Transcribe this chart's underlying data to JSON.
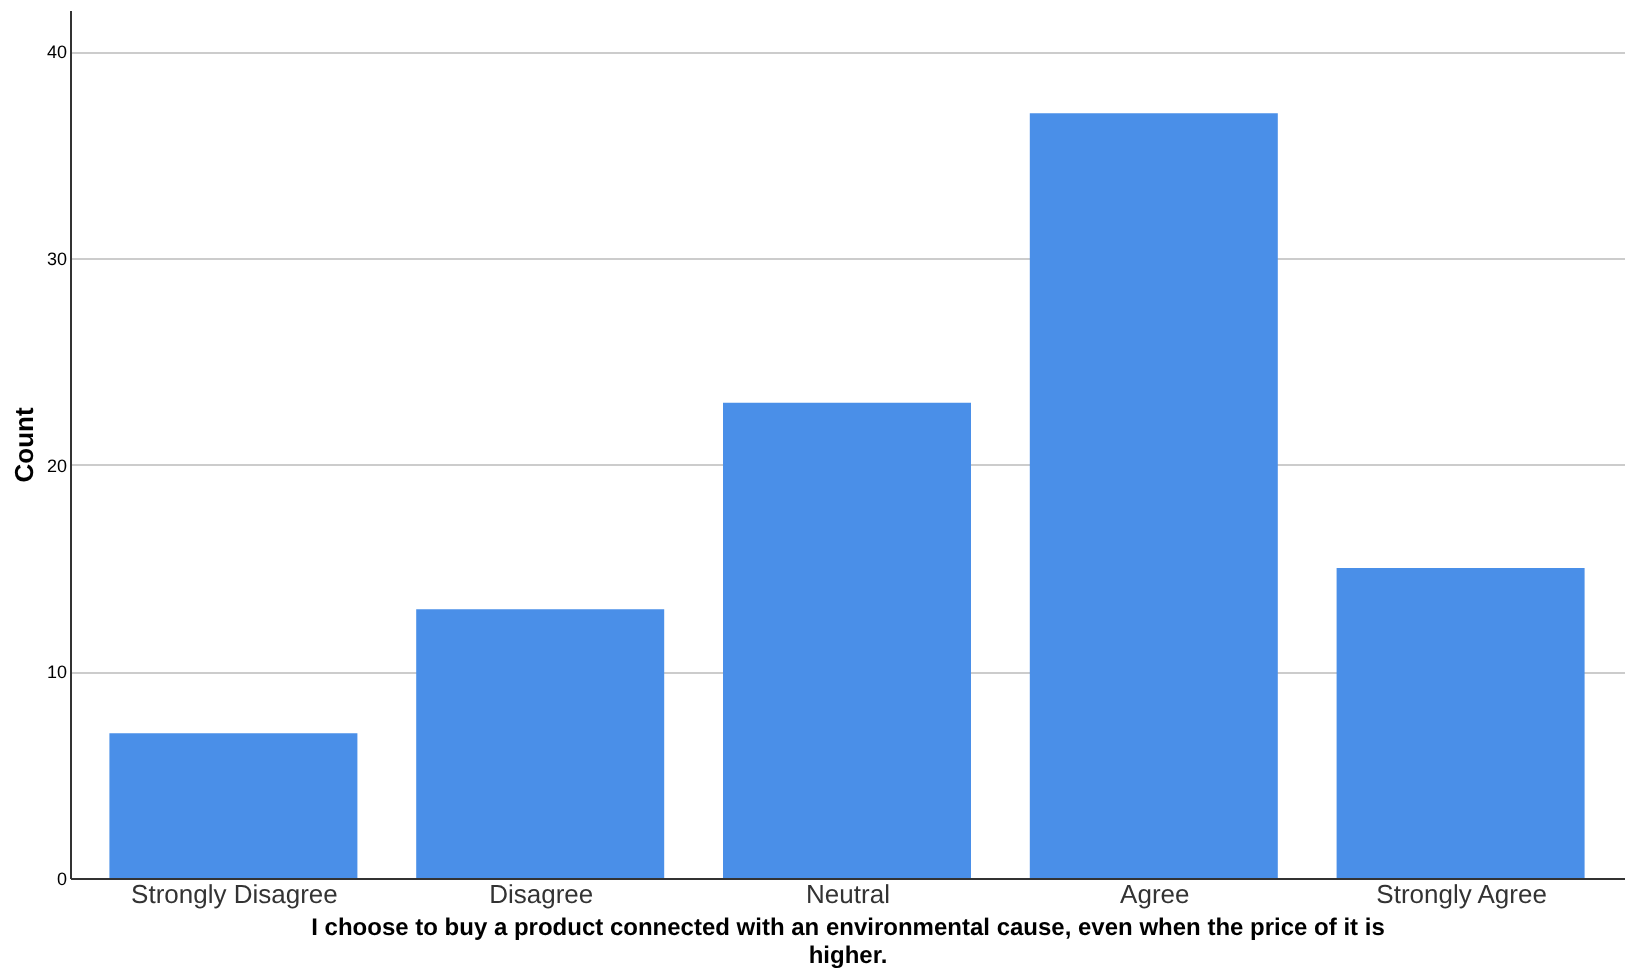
{
  "chart_data": {
    "type": "bar",
    "xlabel": "I choose to buy a product connected with an environmental cause, even when the price of it is higher.",
    "ylabel": "Count",
    "categories": [
      "Strongly Disagree",
      "Disagree",
      "Neutral",
      "Agree",
      "Strongly Agree"
    ],
    "values": [
      7,
      13,
      23,
      37,
      15
    ],
    "color": "#4a8fe8",
    "ylim": [
      0,
      42
    ],
    "yticks": [
      0,
      10,
      20,
      30,
      40
    ],
    "grid": "y"
  }
}
